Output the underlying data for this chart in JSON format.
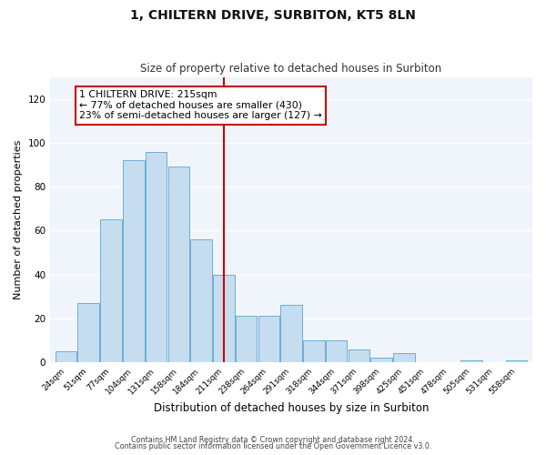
{
  "title": "1, CHILTERN DRIVE, SURBITON, KT5 8LN",
  "subtitle": "Size of property relative to detached houses in Surbiton",
  "xlabel": "Distribution of detached houses by size in Surbiton",
  "ylabel": "Number of detached properties",
  "footer_lines": [
    "Contains HM Land Registry data © Crown copyright and database right 2024.",
    "Contains public sector information licensed under the Open Government Licence v3.0."
  ],
  "bin_labels": [
    "24sqm",
    "51sqm",
    "77sqm",
    "104sqm",
    "131sqm",
    "158sqm",
    "184sqm",
    "211sqm",
    "238sqm",
    "264sqm",
    "291sqm",
    "318sqm",
    "344sqm",
    "371sqm",
    "398sqm",
    "425sqm",
    "451sqm",
    "478sqm",
    "505sqm",
    "531sqm",
    "558sqm"
  ],
  "bar_values": [
    5,
    27,
    65,
    92,
    96,
    89,
    56,
    40,
    21,
    21,
    26,
    10,
    10,
    6,
    2,
    4,
    0,
    0,
    1,
    0,
    1
  ],
  "bar_color": "#c5ddef",
  "bar_edge_color": "#6aaed6",
  "highlight_bar_index": 7,
  "vline_color": "#cc0000",
  "annotation_title": "1 CHILTERN DRIVE: 215sqm",
  "annotation_line1": "← 77% of detached houses are smaller (430)",
  "annotation_line2": "23% of semi-detached houses are larger (127) →",
  "annotation_box_color": "#ffffff",
  "annotation_box_edge": "#cc0000",
  "ylim": [
    0,
    130
  ],
  "yticks": [
    0,
    20,
    40,
    60,
    80,
    100,
    120
  ],
  "background_color": "#ffffff",
  "plot_bg_color": "#f0f5fb"
}
